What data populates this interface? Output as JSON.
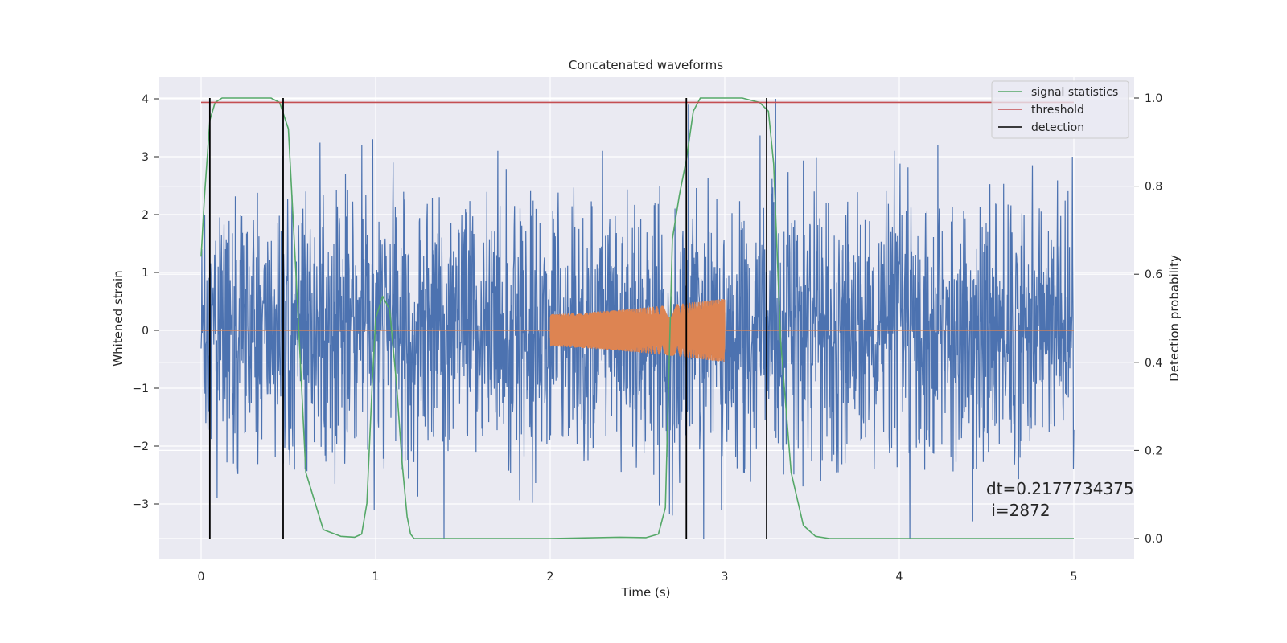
{
  "chart_data": {
    "type": "line",
    "title": "Concatenated waveforms",
    "xlabel": "Time (s)",
    "ylabel": "Whitened strain",
    "y2label": "Detection probability",
    "xlim": [
      -0.25,
      5.35
    ],
    "ylim": [
      -3.6,
      4.0
    ],
    "y2lim": [
      0.0,
      1.0
    ],
    "xticks": [
      0,
      1,
      2,
      3,
      4,
      5
    ],
    "yticks": [
      -3,
      -2,
      -1,
      0,
      1,
      2,
      3,
      4
    ],
    "y2ticks": [
      0.0,
      0.2,
      0.4,
      0.6,
      0.8,
      1.0
    ],
    "xtick_labels": [
      "0",
      "1",
      "2",
      "3",
      "4",
      "5"
    ],
    "ytick_labels": [
      "−3",
      "−2",
      "−1",
      "0",
      "1",
      "2",
      "3",
      "4"
    ],
    "y2tick_labels": [
      "0.0",
      "0.2",
      "0.4",
      "0.6",
      "0.8",
      "1.0"
    ],
    "grid": true,
    "legend_position": "top-right",
    "series": [
      {
        "name": "",
        "axis": "left",
        "color": "#4c72b0",
        "kind": "whitened noise, ~±1.5 typical, spikes to ±3.5",
        "x_range": [
          0,
          5
        ],
        "amplitude": 1.4,
        "spikes": [
          [
            0.02,
            2.0
          ],
          [
            0.09,
            -2.9
          ],
          [
            0.47,
            -2.3
          ],
          [
            0.6,
            2.4
          ],
          [
            0.92,
            3.2
          ],
          [
            0.99,
            -3.1
          ],
          [
            1.1,
            2.9
          ],
          [
            1.7,
            3.1
          ],
          [
            2.3,
            3.1
          ],
          [
            2.7,
            -3.2
          ],
          [
            2.79,
            3.9
          ],
          [
            2.98,
            -3.1
          ],
          [
            3.29,
            4.0
          ],
          [
            3.55,
            -2.6
          ],
          [
            3.97,
            3.1
          ],
          [
            4.06,
            -3.6
          ],
          [
            4.22,
            3.2
          ],
          [
            4.42,
            -3.3
          ],
          [
            4.99,
            3.0
          ]
        ]
      },
      {
        "name": "",
        "axis": "left",
        "color": "#dd8452",
        "kind": "injected chirp",
        "x_range": [
          0,
          5
        ],
        "chirp_start": 2.0,
        "chirp_end": 3.0,
        "amp_start": 0.28,
        "amp_end": 0.55
      },
      {
        "name": "signal statistics",
        "axis": "right",
        "color": "#55a868",
        "x": [
          0.0,
          0.02,
          0.05,
          0.08,
          0.12,
          0.2,
          0.4,
          0.45,
          0.5,
          0.55,
          0.6,
          0.7,
          0.8,
          0.88,
          0.92,
          0.95,
          0.98,
          1.0,
          1.04,
          1.08,
          1.12,
          1.15,
          1.18,
          1.2,
          1.22,
          1.3,
          1.6,
          2.0,
          2.4,
          2.55,
          2.62,
          2.66,
          2.7,
          2.74,
          2.78,
          2.82,
          2.86,
          2.95,
          3.1,
          3.2,
          3.25,
          3.28,
          3.32,
          3.38,
          3.45,
          3.52,
          3.6,
          4.0,
          4.5,
          5.0
        ],
        "values": [
          0.64,
          0.78,
          0.95,
          0.99,
          1.0,
          1.0,
          1.0,
          0.99,
          0.93,
          0.55,
          0.15,
          0.02,
          0.005,
          0.003,
          0.01,
          0.08,
          0.35,
          0.5,
          0.55,
          0.52,
          0.35,
          0.18,
          0.05,
          0.01,
          0.0,
          0.0,
          0.0,
          0.0,
          0.003,
          0.002,
          0.01,
          0.07,
          0.68,
          0.78,
          0.86,
          0.97,
          1.0,
          1.0,
          1.0,
          0.99,
          0.97,
          0.85,
          0.45,
          0.15,
          0.03,
          0.005,
          0.0,
          0.0,
          0.0,
          0.0
        ]
      },
      {
        "name": "threshold",
        "axis": "right",
        "color": "#c44e52",
        "x": [
          0,
          5
        ],
        "values": [
          0.99,
          0.99
        ]
      },
      {
        "name": "detection",
        "axis": "right",
        "color": "#000000",
        "vlines": [
          0.05,
          0.47,
          2.78,
          3.24
        ]
      }
    ],
    "annotation": {
      "dt_line": "dt=0.2177734375",
      "i_line": " i=2872"
    }
  }
}
